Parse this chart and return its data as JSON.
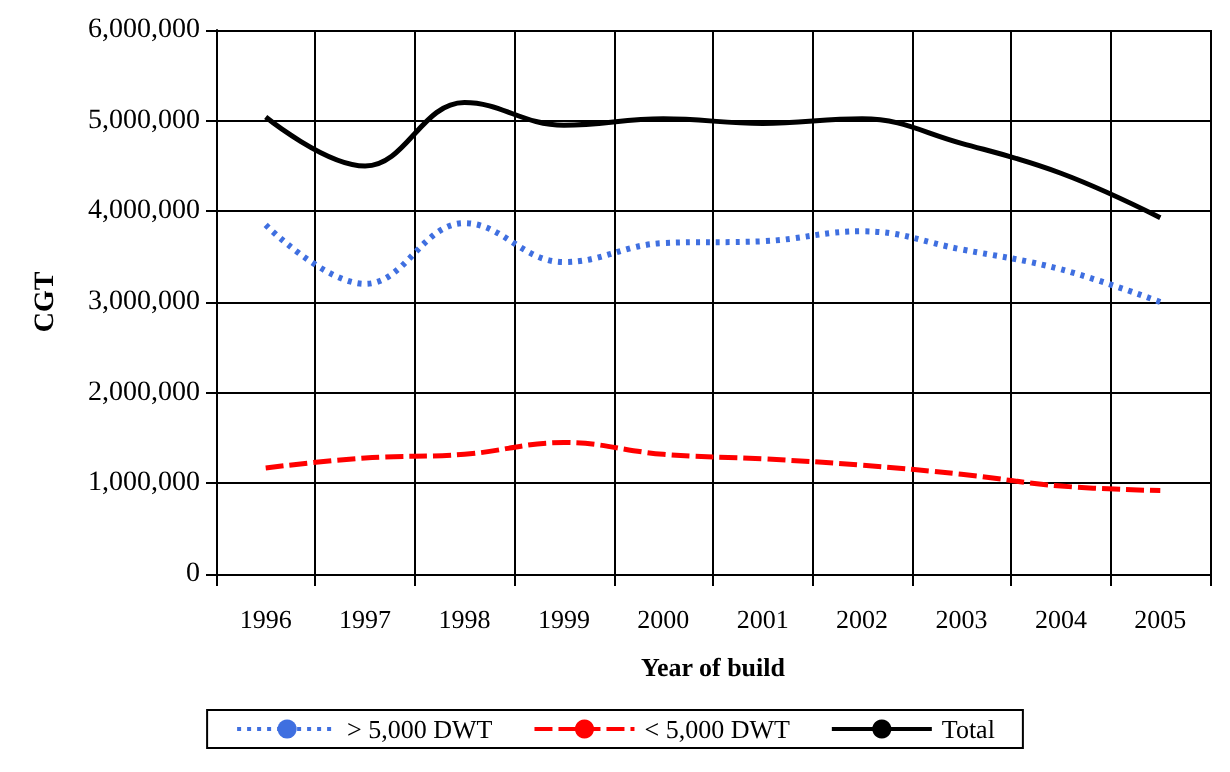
{
  "chart_data": {
    "type": "line",
    "xlabel": "Year of build",
    "ylabel": "CGT",
    "categories": [
      "1996",
      "1997",
      "1998",
      "1999",
      "2000",
      "2001",
      "2002",
      "2003",
      "2004",
      "2005"
    ],
    "series": [
      {
        "name": "> 5,000 DWT",
        "color": "#3f6fe0",
        "line_style": "dotted",
        "values": [
          3850000,
          3200000,
          3870000,
          3440000,
          3650000,
          3670000,
          3780000,
          3580000,
          3360000,
          3000000
        ]
      },
      {
        "name": "< 5,000 DWT",
        "color": "#ff0000",
        "line_style": "dashed",
        "values": [
          1170000,
          1280000,
          1320000,
          1450000,
          1320000,
          1270000,
          1200000,
          1100000,
          970000,
          920000
        ]
      },
      {
        "name": "Total",
        "color": "#000000",
        "line_style": "solid",
        "values": [
          5040000,
          4500000,
          5200000,
          4950000,
          5020000,
          4970000,
          5020000,
          4750000,
          4420000,
          3930000
        ]
      }
    ],
    "ylim": [
      0,
      6000000
    ],
    "yticks": [
      0,
      {
        "value": 1000000,
        "label": "1,000,000"
      },
      {
        "value": 2000000,
        "label": "2,000,000"
      },
      {
        "value": 3000000,
        "label": "3,000,000"
      },
      {
        "value": 4000000,
        "label": "4,000,000"
      },
      {
        "value": 5000000,
        "label": "5,000,000"
      },
      {
        "value": 6000000,
        "label": "6,000,000"
      }
    ],
    "grid": true,
    "legend": "bottom",
    "marker": "none"
  }
}
